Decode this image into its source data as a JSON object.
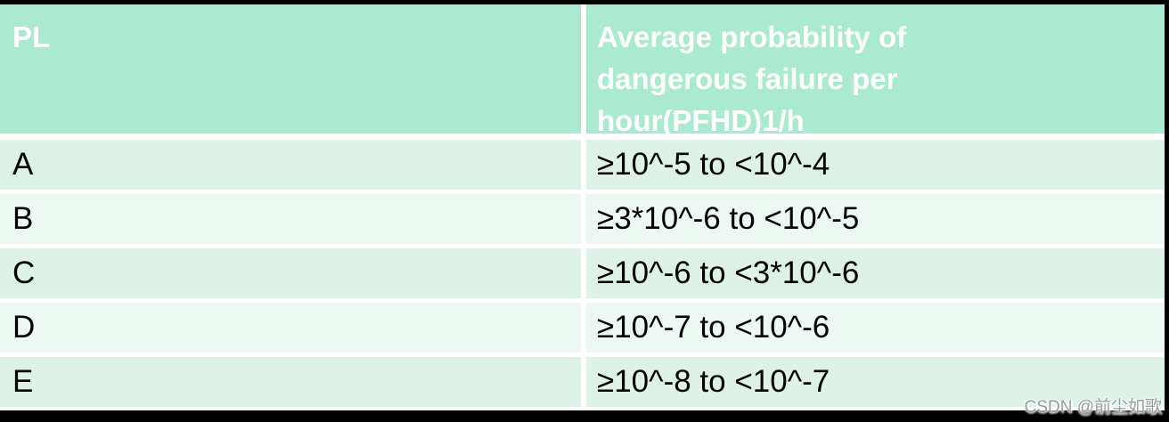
{
  "colors": {
    "header_bg": "#a9ead0",
    "row_tint_a_bg": "#ddf3e7",
    "row_tint_b_bg": "#edf8f2",
    "separator": "#ffffff",
    "outer_border": "#000000",
    "header_text": "#ffffff",
    "body_text": "#000000",
    "watermark_text": "#9c9c9c"
  },
  "table": {
    "columns": [
      {
        "key": "pl",
        "label": "PL"
      },
      {
        "key": "pfhd",
        "label": "Average probability of dangerous failure per hour(PFHD)1/h"
      }
    ],
    "rows": [
      {
        "pl": "A",
        "pfhd": "≥10^-5 to <10^-4"
      },
      {
        "pl": "B",
        "pfhd": "≥3*10^-6 to <10^-5"
      },
      {
        "pl": "C",
        "pfhd": "≥10^-6 to <3*10^-6"
      },
      {
        "pl": "D",
        "pfhd": "≥10^-7 to <10^-6"
      },
      {
        "pl": "E",
        "pfhd": "≥10^-8 to <10^-7"
      }
    ]
  },
  "chart_data": {
    "type": "table",
    "title": "",
    "columns": [
      "PL",
      "Average probability of dangerous failure per hour(PFHD)1/h"
    ],
    "rows": [
      [
        "A",
        "≥10^-5 to <10^-4"
      ],
      [
        "B",
        "≥3*10^-6 to <10^-5"
      ],
      [
        "C",
        "≥10^-6 to <3*10^-6"
      ],
      [
        "D",
        "≥10^-7 to <10^-6"
      ],
      [
        "E",
        "≥10^-8 to <10^-7"
      ]
    ]
  },
  "watermark": {
    "text": "CSDN @前尘如歌"
  }
}
